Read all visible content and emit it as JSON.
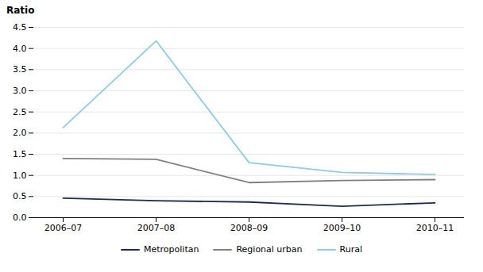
{
  "chart_data": {
    "type": "line",
    "ylabel": "Ratio",
    "categories": [
      "2006–07",
      "2007–08",
      "2008–09",
      "2009–10",
      "2010–11"
    ],
    "series": [
      {
        "name": "Metropolitan",
        "color": "#1a2b5e",
        "values": [
          0.46,
          0.4,
          0.37,
          0.27,
          0.35
        ]
      },
      {
        "name": "Regional urban",
        "color": "#808080",
        "values": [
          1.4,
          1.38,
          0.83,
          0.88,
          0.9
        ]
      },
      {
        "name": "Rural",
        "color": "#87ceeb",
        "values": [
          2.13,
          4.18,
          1.3,
          1.07,
          1.02
        ]
      }
    ],
    "ylim": [
      0.0,
      4.5
    ],
    "yticks": [
      {
        "value": 0,
        "label": "0.0"
      },
      0.5,
      {
        "value": 1,
        "label": "1.0"
      },
      1.5,
      {
        "value": 2,
        "label": "2.0"
      },
      2.5,
      {
        "value": 3,
        "label": "3.0"
      },
      3.5,
      {
        "value": 4,
        "label": "4.0"
      },
      4.5
    ],
    "grid": true,
    "legend": "bottom"
  }
}
